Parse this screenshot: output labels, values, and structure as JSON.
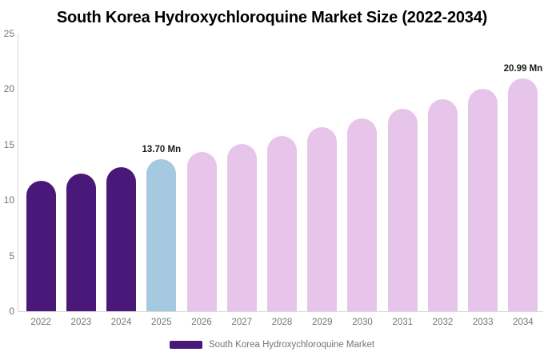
{
  "title": "South Korea Hydroxychloroquine Market Size (2022-2034)",
  "chart_data": {
    "type": "bar",
    "title": "South Korea Hydroxychloroquine Market Size (2022-2034)",
    "categories": [
      "2022",
      "2023",
      "2024",
      "2025",
      "2026",
      "2027",
      "2028",
      "2029",
      "2030",
      "2031",
      "2032",
      "2033",
      "2034"
    ],
    "series": [
      {
        "name": "South Korea Hydroxychloroquine Market",
        "values": [
          11.75,
          12.4,
          12.95,
          13.7,
          14.36,
          15.06,
          15.79,
          16.55,
          17.36,
          18.2,
          19.08,
          20.01,
          20.99
        ]
      }
    ],
    "unit": "Mn",
    "bar_roles": [
      "historical",
      "historical",
      "historical",
      "base_year",
      "forecast",
      "forecast",
      "forecast",
      "forecast",
      "forecast",
      "forecast",
      "forecast",
      "forecast",
      "forecast"
    ],
    "role_colors": {
      "historical": "#4a1878",
      "base_year": "#a4c9e0",
      "forecast": "#e7c4ea"
    },
    "data_labels": [
      {
        "category": "2025",
        "text": "13.70 Mn"
      },
      {
        "category": "2034",
        "text": "20.99 Mn"
      }
    ],
    "ylim": [
      0,
      25
    ],
    "yticks": [
      0,
      5,
      10,
      15,
      20,
      25
    ],
    "grid": false,
    "axis_color": "#d9d9d9",
    "tick_color": "#757575",
    "annotation_color": "#1a1a1a",
    "legend": {
      "position": "bottom",
      "items": [
        {
          "label": "South Korea Hydroxychloroquine Market",
          "color": "#4a1878"
        }
      ]
    }
  }
}
